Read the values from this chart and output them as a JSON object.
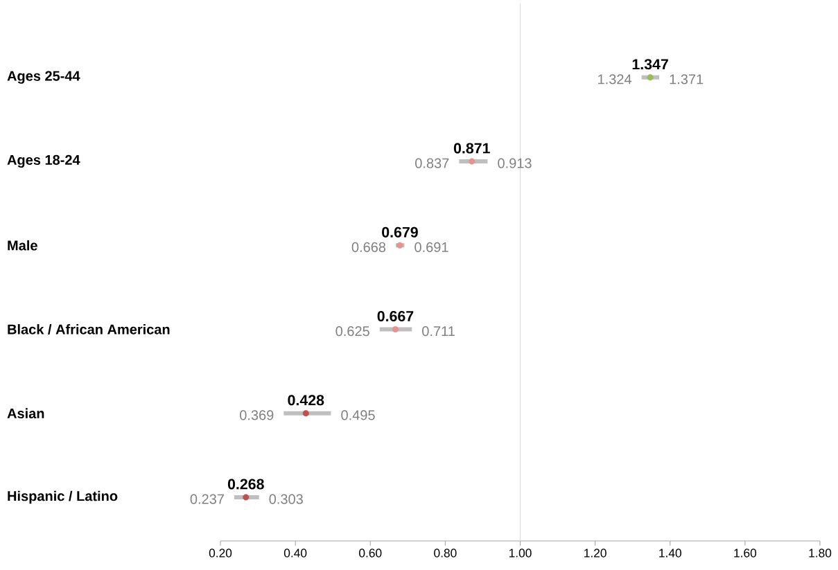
{
  "chart_data": {
    "type": "scatter",
    "orientation": "horizontal",
    "categories": [
      "Ages 25-44",
      "Ages 18-24",
      "Male",
      "Black / African American",
      "Asian",
      "Hispanic / Latino"
    ],
    "values": [
      1.347,
      0.871,
      0.679,
      0.667,
      0.428,
      0.268
    ],
    "value_labels": [
      "1.347",
      "0.871",
      "0.679",
      "0.667",
      "0.428",
      "0.268"
    ],
    "errors": [
      [
        1.324,
        1.371
      ],
      [
        0.837,
        0.913
      ],
      [
        0.668,
        0.691
      ],
      [
        0.625,
        0.711
      ],
      [
        0.369,
        0.495
      ],
      [
        0.237,
        0.303
      ]
    ],
    "colors": [
      "#9bbb59",
      "#e6928f",
      "#e6928f",
      "#e6928f",
      "#c0504d",
      "#c0504d"
    ],
    "xlim": [
      0.2,
      1.8
    ],
    "xticks": [
      {
        "value": 0.2,
        "label": "0.20"
      },
      {
        "value": 0.4,
        "label": "0.40"
      },
      {
        "value": 0.6,
        "label": "0.60"
      },
      {
        "value": 0.8,
        "label": "0.80"
      },
      {
        "value": 1.0,
        "label": "1.00"
      },
      {
        "value": 1.2,
        "label": "1.20"
      },
      {
        "value": 1.4,
        "label": "1.40"
      },
      {
        "value": 1.6,
        "label": "1.60"
      },
      {
        "value": 1.8,
        "label": "1.80"
      }
    ],
    "ref_lines": [
      {
        "axis": "x",
        "value": 1.0,
        "color": "#d9d9d9"
      }
    ],
    "marker": "circle",
    "annotations": [
      "1.324",
      "1.371",
      "0.837",
      "0.913",
      "0.668",
      "0.691",
      "0.625",
      "0.711",
      "0.369",
      "0.495",
      "0.237",
      "0.303"
    ]
  }
}
